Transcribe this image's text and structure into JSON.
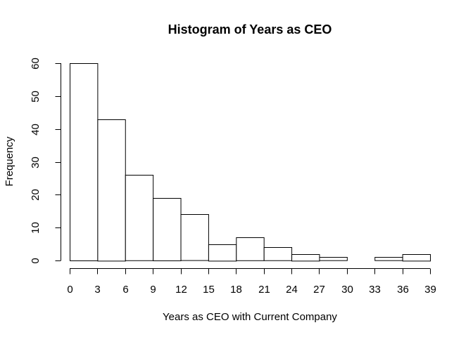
{
  "chart_data": {
    "type": "bar",
    "title": "Histogram of Years as CEO",
    "xlabel": "Years as CEO with Current Company",
    "ylabel": "Frequency",
    "bin_edges": [
      0,
      3,
      6,
      9,
      12,
      15,
      18,
      21,
      24,
      27,
      30,
      33,
      36,
      39
    ],
    "values": [
      60,
      43,
      26,
      19,
      14,
      5,
      7,
      4,
      2,
      1,
      0,
      1,
      2
    ],
    "xlim": [
      0,
      39
    ],
    "ylim": [
      0,
      60
    ],
    "x_ticks": [
      0,
      3,
      6,
      9,
      12,
      15,
      18,
      21,
      24,
      27,
      30,
      33,
      36,
      39
    ],
    "y_ticks": [
      0,
      10,
      20,
      30,
      40,
      50,
      60
    ],
    "grid": false
  }
}
